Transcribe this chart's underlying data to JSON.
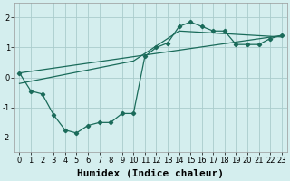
{
  "title": "",
  "xlabel": "Humidex (Indice chaleur)",
  "background_color": "#d4eeee",
  "grid_color": "#aacccc",
  "line_color": "#1a6b5a",
  "line1_x": [
    0,
    1,
    2,
    3,
    4,
    5,
    6,
    7,
    8,
    9,
    10,
    11,
    12,
    13,
    14,
    15,
    16,
    17,
    18,
    19,
    20,
    21,
    22,
    23
  ],
  "line1_y": [
    0.15,
    -0.45,
    -0.55,
    -1.25,
    -1.75,
    -1.85,
    -1.6,
    -1.5,
    -1.5,
    -1.2,
    -1.2,
    0.7,
    1.0,
    1.15,
    1.7,
    1.85,
    1.7,
    1.55,
    1.55,
    1.1,
    1.1,
    1.1,
    1.3,
    1.4
  ],
  "line2_x": [
    0,
    23
  ],
  "line2_y": [
    0.15,
    1.4
  ],
  "line3_x": [
    0,
    10,
    14,
    23
  ],
  "line3_y": [
    -0.2,
    0.55,
    1.55,
    1.35
  ],
  "ylim": [
    -2.5,
    2.5
  ],
  "xlim": [
    -0.5,
    23.5
  ],
  "yticks": [
    -2,
    -1,
    0,
    1,
    2
  ],
  "xticks": [
    0,
    1,
    2,
    3,
    4,
    5,
    6,
    7,
    8,
    9,
    10,
    11,
    12,
    13,
    14,
    15,
    16,
    17,
    18,
    19,
    20,
    21,
    22,
    23
  ],
  "tick_fontsize": 6,
  "label_fontsize": 8
}
